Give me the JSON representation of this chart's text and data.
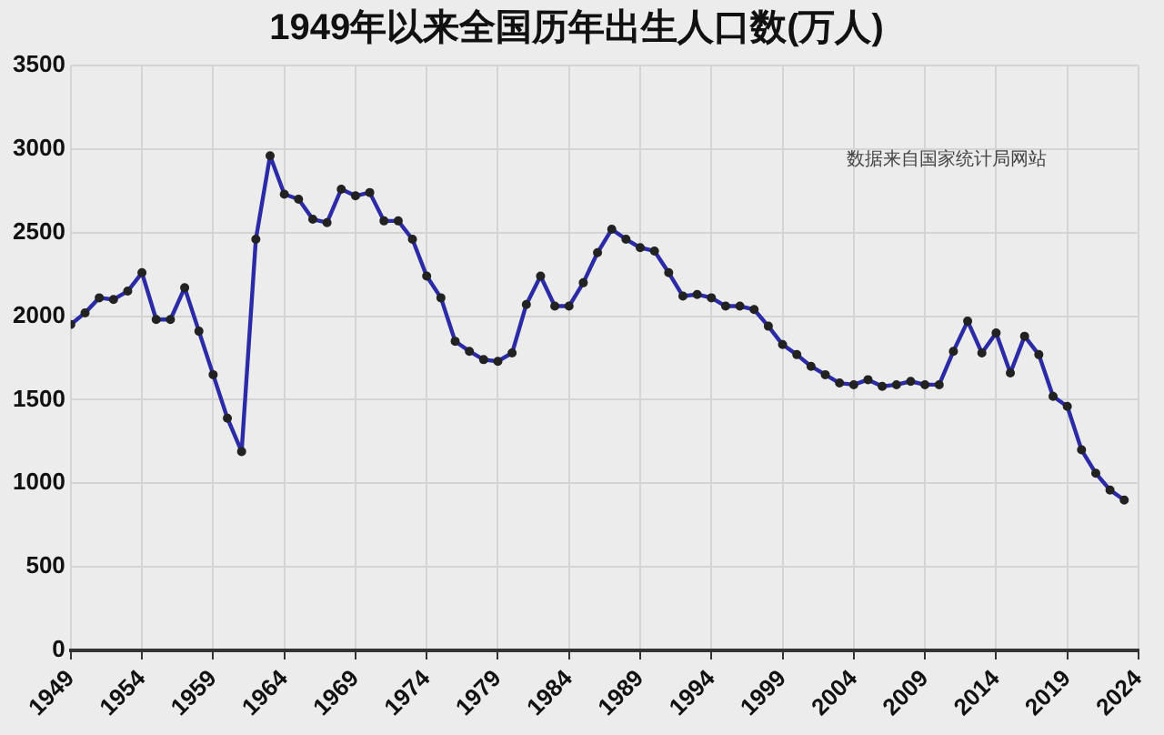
{
  "chart_data": {
    "type": "line",
    "title": "1949年以来全国历年出生人口数(万人)",
    "annotations": [
      "数据来自国家统计局网站"
    ],
    "x": [
      1949,
      1950,
      1951,
      1952,
      1953,
      1954,
      1955,
      1956,
      1957,
      1958,
      1959,
      1960,
      1961,
      1962,
      1963,
      1964,
      1965,
      1966,
      1967,
      1968,
      1969,
      1970,
      1971,
      1972,
      1973,
      1974,
      1975,
      1976,
      1977,
      1978,
      1979,
      1980,
      1981,
      1982,
      1983,
      1984,
      1985,
      1986,
      1987,
      1988,
      1989,
      1990,
      1991,
      1992,
      1993,
      1994,
      1995,
      1996,
      1997,
      1998,
      1999,
      2000,
      2001,
      2002,
      2003,
      2004,
      2005,
      2006,
      2007,
      2008,
      2009,
      2010,
      2011,
      2012,
      2013,
      2014,
      2015,
      2016,
      2017,
      2018,
      2019,
      2020,
      2021,
      2022,
      2023
    ],
    "series": [
      {
        "color": "#2b2ba6",
        "values": [
          1950,
          2020,
          2110,
          2100,
          2150,
          2260,
          1980,
          1980,
          2170,
          1910,
          1650,
          1390,
          1190,
          2460,
          2960,
          2730,
          2700,
          2580,
          2560,
          2760,
          2720,
          2740,
          2570,
          2570,
          2460,
          2240,
          2110,
          1850,
          1790,
          1740,
          1730,
          1780,
          2070,
          2240,
          2060,
          2060,
          2200,
          2380,
          2520,
          2460,
          2410,
          2390,
          2260,
          2120,
          2130,
          2110,
          2060,
          2060,
          2040,
          1940,
          1830,
          1770,
          1700,
          1650,
          1600,
          1590,
          1620,
          1580,
          1590,
          1610,
          1590,
          1590,
          1790,
          1970,
          1780,
          1900,
          1660,
          1880,
          1770,
          1520,
          1460,
          1200,
          1060,
          960,
          900
        ]
      }
    ],
    "xlim": [
      1949,
      2024
    ],
    "xticks": [
      1949,
      1954,
      1959,
      1964,
      1969,
      1974,
      1979,
      1984,
      1989,
      1994,
      1999,
      2004,
      2009,
      2014,
      2019,
      2024
    ],
    "ylim": [
      0,
      3500
    ],
    "yticks": [
      0,
      500,
      1000,
      1500,
      2000,
      2500,
      3000,
      3500
    ],
    "grid": true,
    "legend": false,
    "marker": "circle",
    "line_style": "solid"
  }
}
